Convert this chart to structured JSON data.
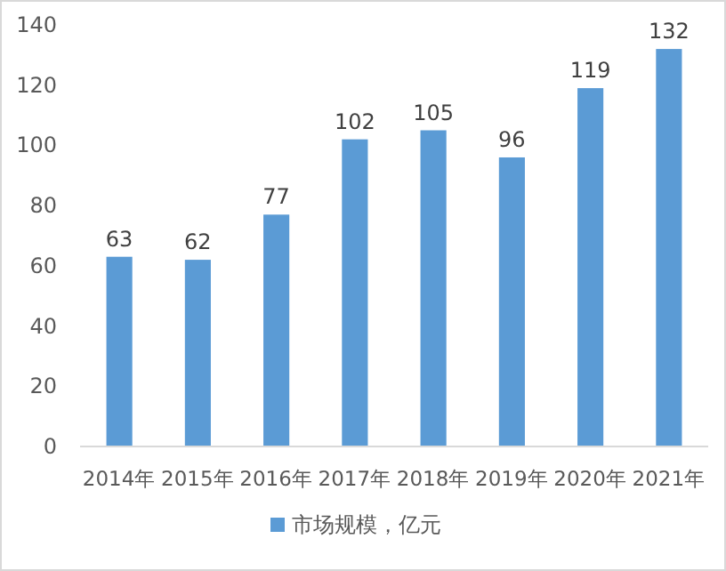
{
  "chart_data": {
    "type": "bar",
    "categories": [
      "2014年",
      "2015年",
      "2016年",
      "2017年",
      "2018年",
      "2019年",
      "2020年",
      "2021年"
    ],
    "series": [
      {
        "name": "市场规模，亿元",
        "color": "#5b9bd5",
        "values": [
          63,
          62,
          77,
          102,
          105,
          96,
          119,
          132
        ]
      }
    ],
    "ylim": [
      0,
      140
    ],
    "yticks": [
      0,
      20,
      40,
      60,
      80,
      100,
      120,
      140
    ],
    "data_labels": true,
    "legend": "bottom"
  }
}
